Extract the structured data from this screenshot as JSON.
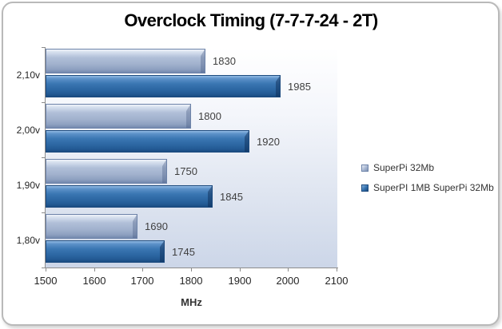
{
  "window": {
    "background_color": "#ffffff",
    "frame_border_color": "#b9b9b9"
  },
  "chart_data": {
    "type": "bar",
    "orientation": "horizontal",
    "title": "Overclock Timing (7-7-7-24 - 2T)",
    "xlabel": "MHz",
    "ylabel": "",
    "categories": [
      "2,10v",
      "2,00v",
      "1,90v",
      "1,80v"
    ],
    "series": [
      {
        "name": "SuperPi 32Mb",
        "color": "#a7b6d1",
        "values": [
          1830,
          1800,
          1750,
          1690
        ]
      },
      {
        "name": "SuperPI 1MB SuperPi 32Mb",
        "color": "#3370ac",
        "values": [
          1985,
          1920,
          1845,
          1745
        ]
      }
    ],
    "data_labels": [
      [
        "1830",
        "1800",
        "1750",
        "1690"
      ],
      [
        "1985",
        "1920",
        "1845",
        "1745"
      ]
    ],
    "xlim": [
      1500,
      2100
    ],
    "xticks": [
      "1500",
      "1600",
      "1700",
      "1800",
      "1900",
      "2000",
      "2100"
    ],
    "grid": false,
    "legend_position": "right"
  }
}
